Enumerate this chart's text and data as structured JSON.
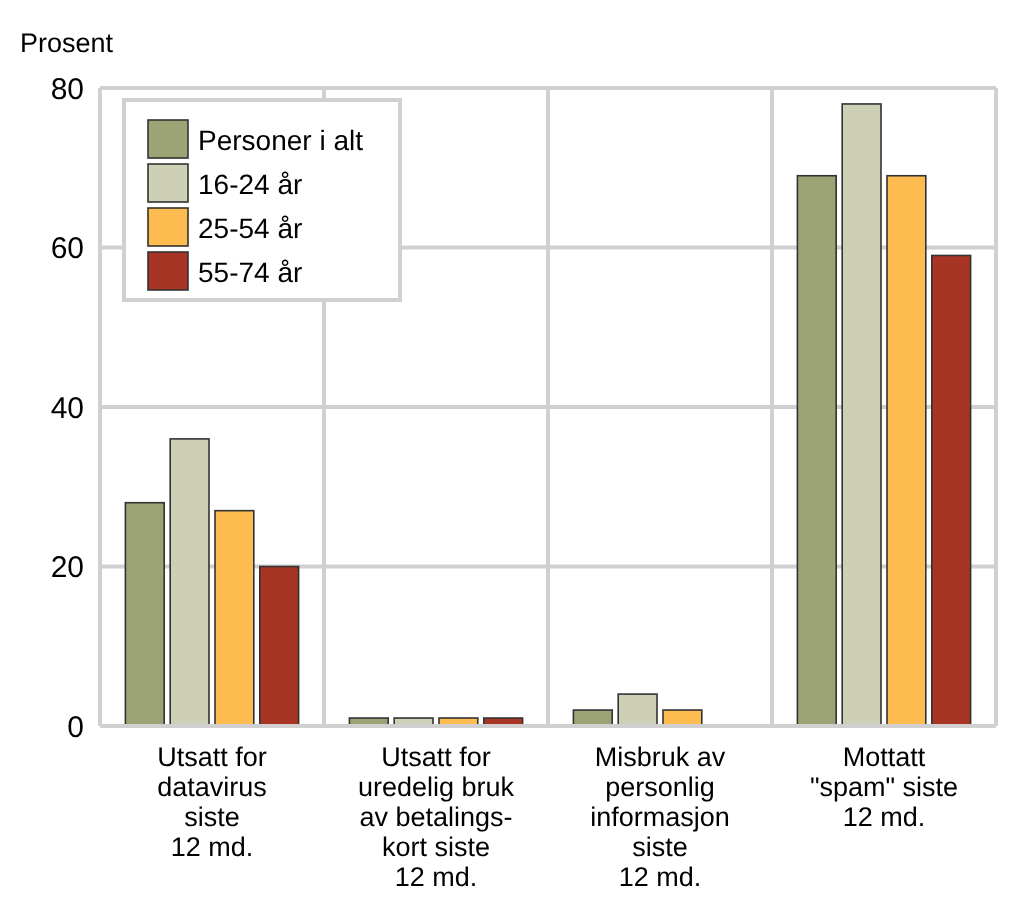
{
  "chart_data": {
    "type": "bar",
    "ylabel": "Prosent",
    "categories": [
      "Utsatt for\ndatavirus\nsiste\n12 md.",
      "Utsatt for\nuredelig bruk\nav betalings-\nkort siste\n12 md.",
      "Misbruk av\npersonlig\ninformasjon\nsiste\n12 md.",
      "Mottatt\n\"spam\" siste\n12 md."
    ],
    "series": [
      {
        "name": "Personer i alt",
        "color": "#9ca374",
        "values": [
          28,
          1,
          2,
          69
        ]
      },
      {
        "name": "16-24 år",
        "color": "#cdd0b4",
        "values": [
          36,
          1,
          4,
          78
        ]
      },
      {
        "name": "25-54 år",
        "color": "#fdbb50",
        "values": [
          27,
          1,
          2,
          69
        ]
      },
      {
        "name": "55-74 år",
        "color": "#a83424",
        "values": [
          20,
          1,
          0,
          59
        ]
      }
    ],
    "ylim": [
      0,
      80
    ],
    "yticks": [
      0,
      20,
      40,
      60,
      80
    ],
    "grid": true,
    "legend": "top left"
  }
}
